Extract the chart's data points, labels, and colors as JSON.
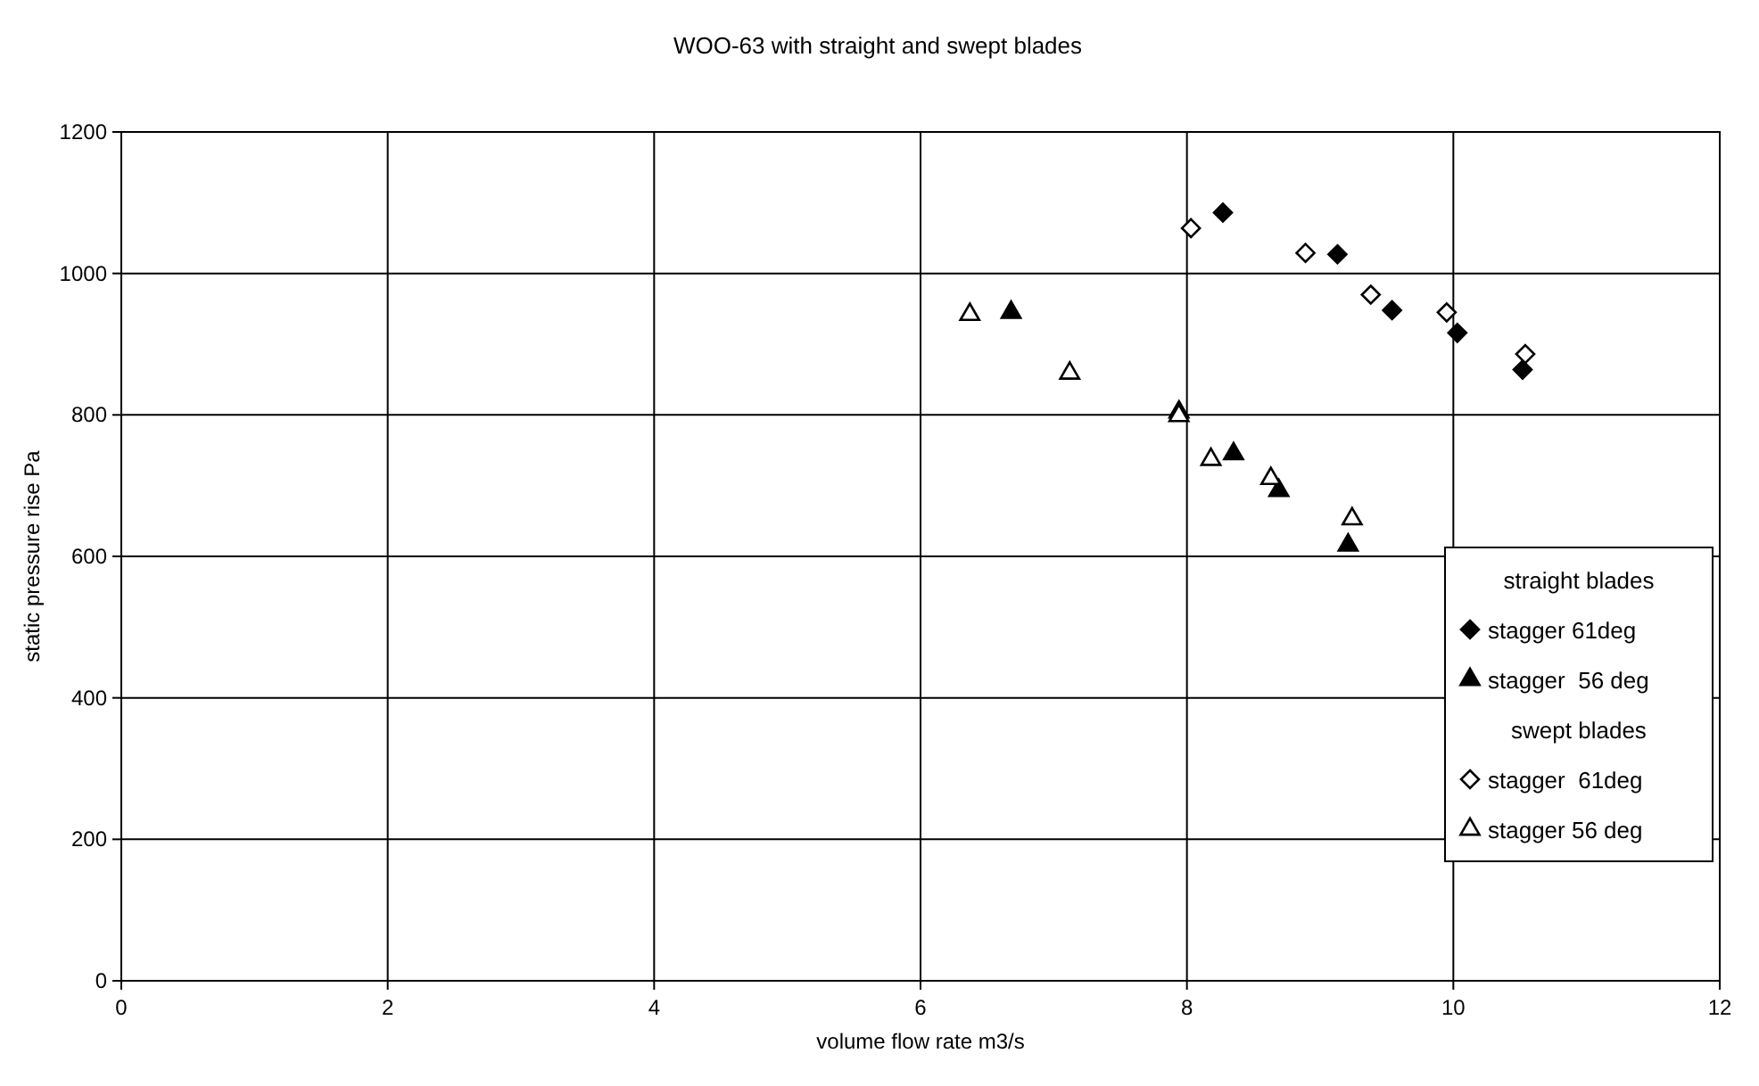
{
  "chart_data": {
    "type": "scatter",
    "title": "WOO-63 with straight and swept blades",
    "xlabel": "volume flow rate m3/s",
    "ylabel": "static pressure rise Pa",
    "xlim": [
      0,
      12
    ],
    "xticks": [
      0,
      2,
      4,
      6,
      8,
      10,
      12
    ],
    "ylim": [
      0,
      1200
    ],
    "yticks": [
      0,
      200,
      400,
      600,
      800,
      1000,
      1200
    ],
    "grid": true,
    "legend": "right",
    "annotations": [
      "straight blades",
      "swept blades"
    ],
    "series": [
      {
        "name": "stagger 61deg",
        "color": "#000000",
        "marker": "diamond",
        "x": [
          8.27,
          9.13,
          9.54,
          10.03,
          10.52
        ],
        "values": [
          1086,
          1027,
          948,
          916,
          864
        ]
      },
      {
        "name": "stagger  56 deg",
        "color": "#000000",
        "marker": "triangle",
        "x": [
          6.68,
          7.94,
          8.35,
          8.69,
          9.21
        ],
        "values": [
          945,
          804,
          745,
          693,
          616
        ]
      },
      {
        "name": "stagger  61deg",
        "color": "#ffffff",
        "marker": "diamond",
        "x": [
          8.03,
          8.89,
          9.38,
          9.95,
          10.54
        ],
        "values": [
          1064,
          1029,
          970,
          945,
          886
        ]
      },
      {
        "name": "stagger 56 deg",
        "color": "#ffffff",
        "marker": "triangle",
        "x": [
          6.37,
          7.12,
          7.94,
          8.18,
          8.63,
          9.24
        ],
        "values": [
          942,
          859,
          799,
          737,
          710,
          653
        ]
      }
    ]
  }
}
